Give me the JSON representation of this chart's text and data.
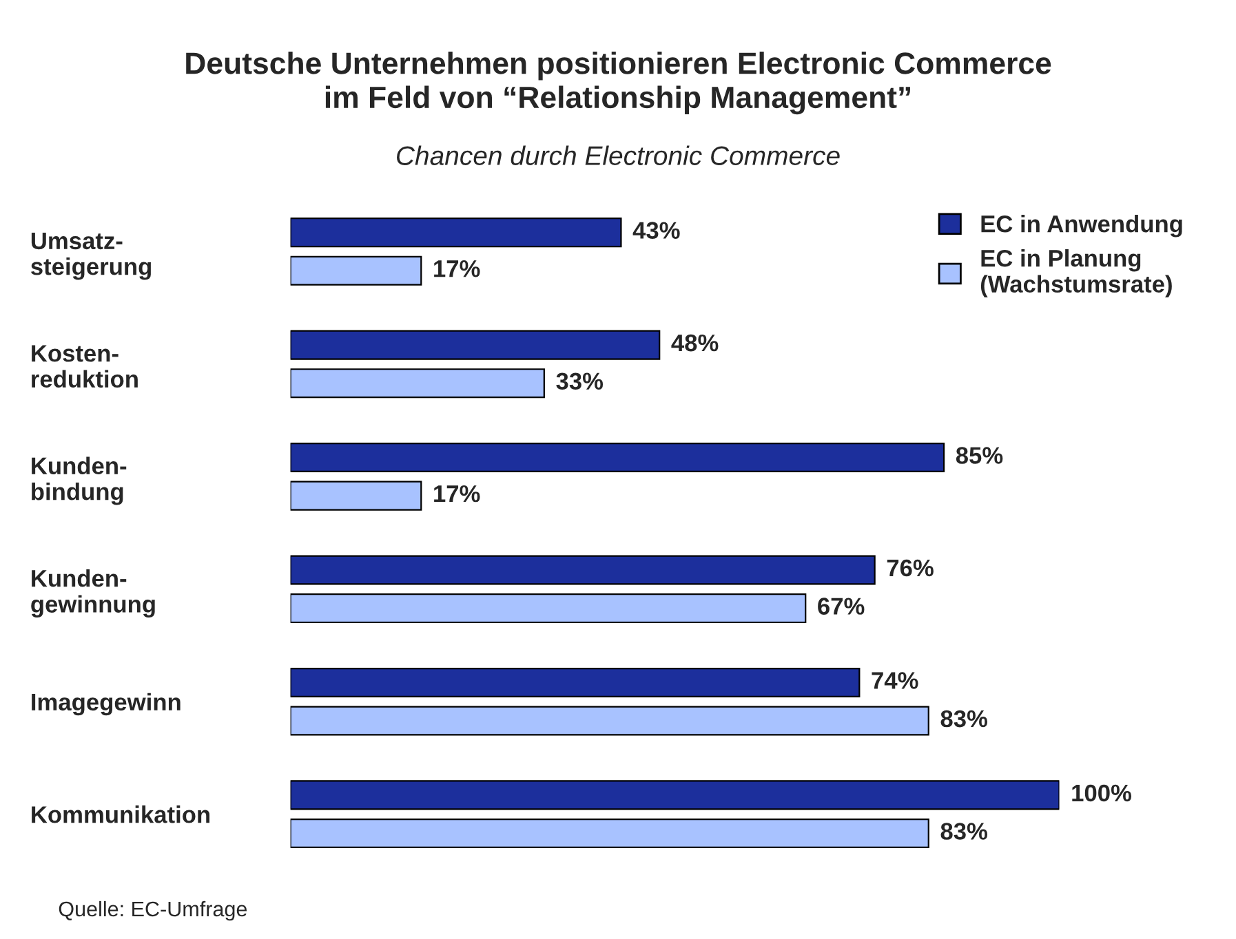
{
  "chart_data": {
    "type": "bar",
    "orientation": "horizontal",
    "title": "Deutsche Unternehmen positionieren Electronic Commerce\nim Feld von “Relationship Management”",
    "subtitle": "Chancen durch Electronic Commerce",
    "categories": [
      "Umsatz-\nsteigerung",
      "Kosten-\nreduktion",
      "Kunden-\nbindung",
      "Kunden-\ngewinnung",
      "Imagegewinn",
      "Kommunikation"
    ],
    "series": [
      {
        "name": "EC in Anwendung",
        "color": "#1c2f9c",
        "values": [
          43,
          48,
          85,
          76,
          74,
          100
        ],
        "value_labels": [
          "43%",
          "48%",
          "85%",
          "76%",
          "74%",
          "100%"
        ]
      },
      {
        "name": "EC in Planung\n(Wachstumsrate)",
        "color": "#a8c2ff",
        "values": [
          17,
          33,
          17,
          67,
          83,
          83
        ],
        "value_labels": [
          "17%",
          "33%",
          "17%",
          "67%",
          "83%",
          "83%"
        ]
      }
    ],
    "xlim": [
      0,
      100
    ],
    "tick_labels": "y",
    "legend": "top right",
    "grid": false,
    "annotations": [
      "Quelle: EC-Umfrage"
    ]
  }
}
